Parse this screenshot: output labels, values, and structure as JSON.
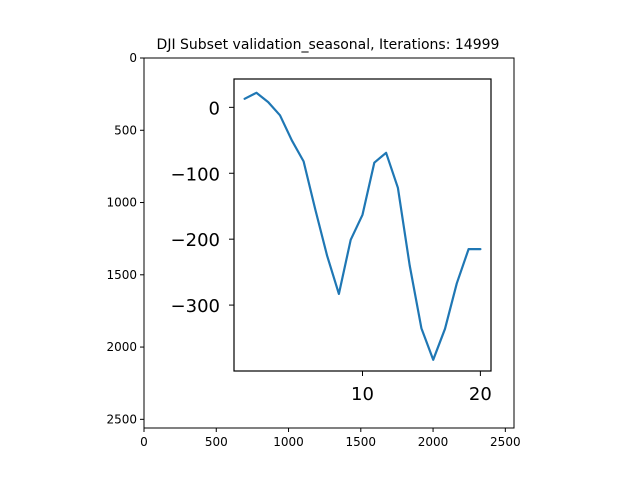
{
  "chart_data": [
    {
      "type": "image-axes",
      "title": "DJI Subset validation_seasonal, Iterations: 14999",
      "xlim": [
        0,
        2560
      ],
      "ylim": [
        2560,
        0
      ],
      "x_ticks": [
        0,
        500,
        1000,
        1500,
        2000,
        2500
      ],
      "y_ticks": [
        0,
        500,
        1000,
        1500,
        2000,
        2500
      ],
      "x_tick_labels": [
        "0",
        "500",
        "1000",
        "1500",
        "2000",
        "2500"
      ],
      "y_tick_labels": [
        "0",
        "500",
        "1000",
        "1500",
        "2000",
        "2500"
      ]
    },
    {
      "type": "line",
      "xlim": [
        -0.9,
        20.9
      ],
      "ylim": [
        -400,
        43
      ],
      "x_ticks": [
        10,
        20
      ],
      "y_ticks": [
        0,
        -100,
        -200,
        -300
      ],
      "x_tick_labels": [
        "10",
        "20"
      ],
      "y_tick_labels": [
        "0",
        "−100",
        "−200",
        "−300"
      ],
      "line_color": "#1f77b4",
      "series": [
        {
          "x": [
            0,
            1,
            2,
            3,
            4,
            5,
            6,
            7,
            8,
            9,
            10,
            11,
            12,
            13,
            14,
            15,
            16,
            17,
            18,
            19,
            20
          ],
          "y": [
            13,
            22,
            8,
            -12,
            -50,
            -82,
            -155,
            -225,
            -283,
            -201,
            -163,
            -84,
            -69,
            -122,
            -240,
            -335,
            -383,
            -336,
            -267,
            -215,
            -215
          ]
        }
      ]
    }
  ]
}
